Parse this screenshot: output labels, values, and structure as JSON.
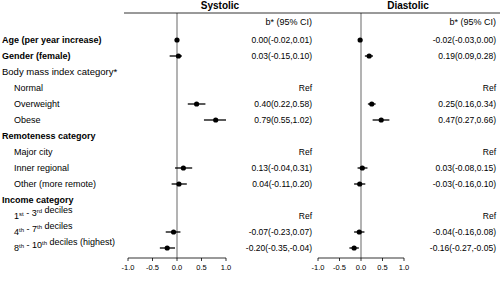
{
  "chart_data": {
    "type": "forest",
    "color": "#000000",
    "categories": [
      "Age (per year increase)",
      "Gender (female)",
      "Body mass index category*",
      "Normal",
      "Overweight",
      "Obese",
      "Remoteness category",
      "Major city",
      "Inner regional",
      "Other (more remote)",
      "Income category",
      "1st - 3rd deciles",
      "4th - 7th deciles",
      "8th - 10th deciles (highest)"
    ],
    "panels": [
      {
        "title": "Systolic",
        "column_label": "b* (95% CI)",
        "values": [
          0.0,
          0.03,
          null,
          null,
          0.4,
          0.79,
          null,
          null,
          0.13,
          0.04,
          null,
          null,
          -0.07,
          -0.2
        ],
        "lower": [
          -0.02,
          -0.15,
          null,
          null,
          0.22,
          0.55,
          null,
          null,
          -0.04,
          -0.11,
          null,
          null,
          -0.23,
          -0.35
        ],
        "upper": [
          0.01,
          0.1,
          null,
          null,
          0.58,
          1.02,
          null,
          null,
          0.31,
          0.2,
          null,
          null,
          0.07,
          -0.04
        ],
        "value_labels": [
          "0.00(-0.02,0.01)",
          "0.03(-0.15,0.10)",
          null,
          "Ref",
          "0.40(0.22,0.58)",
          "0.79(0.55,1.02)",
          null,
          "Ref",
          "0.13(-0.04,0.31)",
          "0.04(-0.11,0.20)",
          null,
          "Ref",
          "-0.07(-0.23,0.07)",
          "-0.20(-0.35,-0.04)"
        ],
        "xlim": [
          -1,
          1
        ],
        "xticks": [
          {
            "value": -1,
            "label": "-1.0"
          },
          -0.5,
          {
            "value": 0,
            "label": "0.0"
          },
          0.5,
          {
            "value": 1,
            "label": "1.0"
          }
        ]
      },
      {
        "title": "Diastolic",
        "column_label": "b* (95% CI)",
        "values": [
          -0.02,
          0.19,
          null,
          null,
          0.25,
          0.47,
          null,
          null,
          0.03,
          -0.03,
          null,
          null,
          -0.04,
          -0.16
        ],
        "lower": [
          -0.03,
          0.09,
          null,
          null,
          0.16,
          0.27,
          null,
          null,
          -0.08,
          -0.16,
          null,
          null,
          -0.16,
          -0.27
        ],
        "upper": [
          0.0,
          0.28,
          null,
          null,
          0.34,
          0.66,
          null,
          null,
          0.15,
          0.1,
          null,
          null,
          0.08,
          -0.05
        ],
        "value_labels": [
          "-0.02(-0.03,0.00)",
          "0.19(0.09,0.28)",
          null,
          "Ref",
          "0.25(0.16,0.34)",
          "0.47(0.27,0.66)",
          null,
          "Ref",
          "0.03(-0.08,0.15)",
          "-0.03(-0.16,0.10)",
          null,
          "Ref",
          "-0.04(-0.16,0.08)",
          "-0.16(-0.27,-0.05)"
        ],
        "xlim": [
          -1,
          1
        ],
        "xticks": [
          {
            "value": -1,
            "label": "-1.0"
          },
          -0.5,
          {
            "value": 0,
            "label": "0.0"
          },
          0.5,
          {
            "value": 1,
            "label": "1.0"
          }
        ]
      }
    ]
  }
}
